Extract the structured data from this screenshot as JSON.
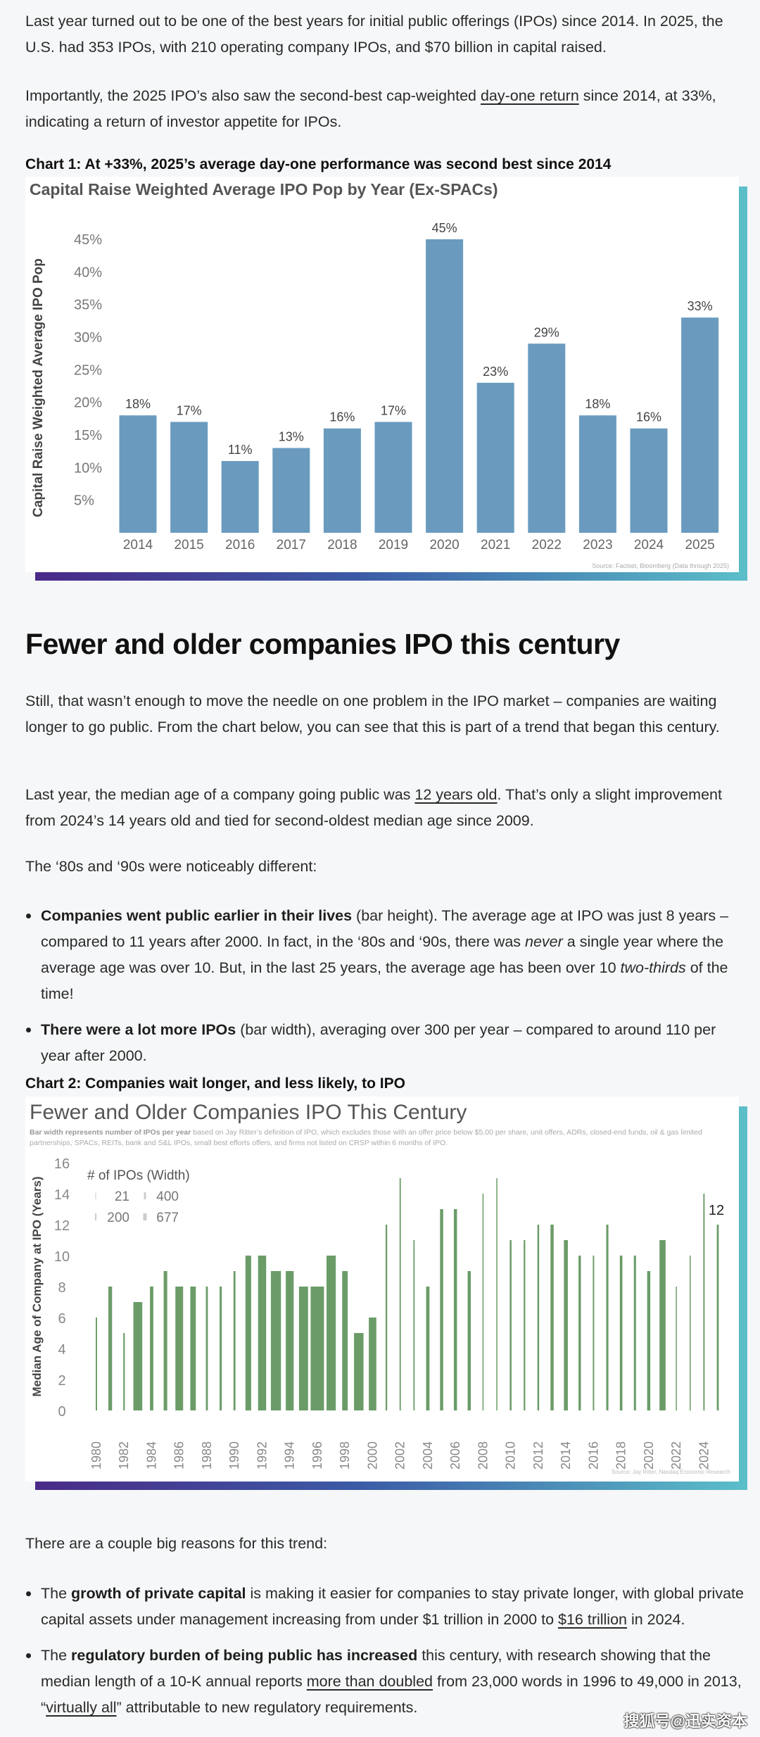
{
  "p1": "Last year turned out to be one of the best years for initial public offerings (IPOs) since 2014. In 2025, the U.S. had 353 IPOs, with 210 operating company IPOs, and $70 billion in capital raised.",
  "p2": {
    "a": "Importantly, the 2025 IPO’s also saw the second-best cap-weighted ",
    "link": "day-one return",
    "b": " since 2014, at 33%, indicating a return of investor appetite for IPOs."
  },
  "chart1_label": "Chart 1: At +33%, 2025’s average day-one performance was second best since 2014",
  "heading": "Fewer and older companies IPO this century",
  "p3": "Still, that wasn’t enough to move the needle on one problem in the IPO market – companies are waiting longer to go public. From the chart below, you can see that this is part of a trend that began this century.",
  "p4": {
    "a": "Last year, the median age of a company going public was ",
    "link": "12 years old",
    "b": ". That’s only a slight improvement from 2024’s 14 years old and tied for second-oldest median age since 2009."
  },
  "p5": "The ‘80s and ‘90s were noticeably different:",
  "bullets1": [
    {
      "bold": "Companies went public earlier in their lives",
      "a": " (bar height). The average age at IPO was just 8 years – compared to 11 years after 2000. In fact, in the ‘80s and ‘90s, there was ",
      "i1": "never",
      "b": " a single year where the average age was over 10. But, in the last 25 years, the average age has been over 10 ",
      "i2": "two-thirds",
      "c": " of the time!"
    },
    {
      "bold": "There were a lot more IPOs",
      "a": " (bar width), averaging over 300 per year – compared to around 110 per year after 2000."
    }
  ],
  "chart2_label": "Chart 2: Companies wait longer, and less likely, to IPO",
  "p6": "There are a couple big reasons for this trend:",
  "bullets2": [
    {
      "a": "The ",
      "bold": "growth of private capital",
      "b": " is making it easier for companies to stay private longer, with global private capital assets under management increasing from under $1 trillion in 2000 to ",
      "link": "$16 trillion",
      "c": " in 2024."
    },
    {
      "a": "The ",
      "bold": "regulatory burden of being public has increased",
      "b": " this century, with research showing that the median length of a 10-K annual reports ",
      "link": "more than doubled",
      "c": " from 23,000 words in 1996 to 49,000 in 2013, “",
      "link2": "virtually all",
      "d": "” attributable to new regulatory requirements."
    }
  ],
  "watermark": "搜狐号@迅实资本",
  "chart_data": [
    {
      "type": "bar",
      "title": "Capital Raise Weighted Average IPO Pop by Year (Ex-SPACs)",
      "ylabel": "Capital Raise Weighted Average IPO Pop",
      "xlabel": "",
      "categories": [
        "2014",
        "2015",
        "2016",
        "2017",
        "2018",
        "2019",
        "2020",
        "2021",
        "2022",
        "2023",
        "2024",
        "2025"
      ],
      "values": [
        18,
        17,
        11,
        13,
        16,
        17,
        45,
        23,
        29,
        18,
        16,
        33
      ],
      "data_labels": [
        "18%",
        "17%",
        "11%",
        "13%",
        "16%",
        "17%",
        "45%",
        "23%",
        "29%",
        "18%",
        "16%",
        "33%"
      ],
      "yticks": [
        "5%",
        "10%",
        "15%",
        "20%",
        "25%",
        "30%",
        "35%",
        "40%",
        "45%"
      ],
      "ylim": [
        0,
        48
      ],
      "grid": false,
      "color": "#6a9bbf",
      "source": "Source: Factset, Bloomberg (Data through 2025)"
    },
    {
      "type": "bar",
      "title": "Fewer and Older Companies IPO This Century",
      "subtitle_bold": "Bar width represents number of IPOs per year",
      "subtitle": " based on Jay Ritter’s definition of IPO, which excludes those with an offer price below $5.00 per share, unit offers, ADRs, closed-end funds, oil & gas limited partnerships, SPACs, REITs, bank and S&L IPOs, small best efforts offers, and firms not listed on CRSP within 6 months of IPO.",
      "ylabel": "Median Age of Company at IPO (Years)",
      "yticks": [
        "0",
        "2",
        "4",
        "6",
        "8",
        "10",
        "12",
        "14",
        "16"
      ],
      "ylim": [
        0,
        16
      ],
      "x": [
        1980,
        1981,
        1982,
        1983,
        1984,
        1985,
        1986,
        1987,
        1988,
        1989,
        1990,
        1991,
        1992,
        1993,
        1994,
        1995,
        1996,
        1997,
        1998,
        1999,
        2000,
        2001,
        2002,
        2003,
        2004,
        2005,
        2006,
        2007,
        2008,
        2009,
        2010,
        2011,
        2012,
        2013,
        2014,
        2015,
        2016,
        2017,
        2018,
        2019,
        2020,
        2021,
        2022,
        2023,
        2024,
        2025
      ],
      "xtick_labels": [
        "1980",
        "1982",
        "1984",
        "1986",
        "1988",
        "1990",
        "1992",
        "1994",
        "1996",
        "1998",
        "2000",
        "2002",
        "2004",
        "2006",
        "2008",
        "2010",
        "2012",
        "2014",
        "2016",
        "2018",
        "2020",
        "2022",
        "2024"
      ],
      "values": [
        6,
        8,
        5,
        7,
        8,
        9,
        8,
        8,
        8,
        8,
        9,
        10,
        10,
        9,
        9,
        8,
        8,
        10,
        9,
        5,
        6,
        12,
        15,
        11,
        8,
        13,
        13,
        9,
        14,
        15,
        11,
        11,
        12,
        12,
        11,
        10,
        10,
        12,
        10,
        10,
        9,
        11,
        8,
        10,
        14,
        12
      ],
      "ipo_counts_approx": [
        70,
        190,
        77,
        450,
        170,
        180,
        390,
        280,
        100,
        110,
        100,
        290,
        410,
        510,
        400,
        460,
        677,
        470,
        280,
        480,
        380,
        80,
        66,
        63,
        170,
        160,
        160,
        160,
        21,
        41,
        90,
        80,
        90,
        160,
        200,
        120,
        70,
        110,
        130,
        110,
        160,
        310,
        38,
        54,
        70,
        100
      ],
      "legend_title": "# of IPOs (Width)",
      "legend": [
        "21",
        "400",
        "200",
        "677"
      ],
      "end_label": "12",
      "color": "#6b9c68",
      "source": "Source: Jay Ritter, Nasdaq Economic Research"
    }
  ]
}
